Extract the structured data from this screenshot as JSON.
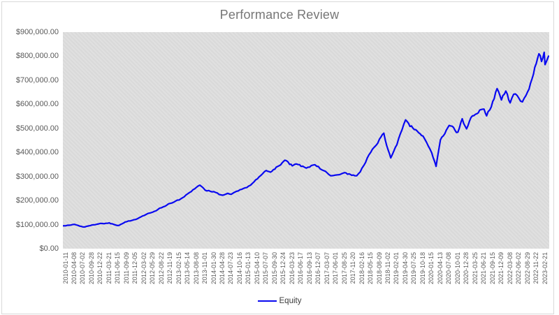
{
  "chart": {
    "title": "Performance Review",
    "legend": {
      "series_label": "Equity"
    }
  },
  "colors": {
    "line": "#0909f0",
    "title_text": "#767676",
    "axis_text": "#595959",
    "plot_background": "#dcdcdc",
    "frame_border": "#d9d9d9"
  },
  "chart_data": {
    "type": "line",
    "title": "Performance Review",
    "legend_position": "bottom",
    "grid": false,
    "ylim": [
      0,
      900000
    ],
    "y_tick_labels": [
      "$900,000.00",
      "$800,000.00",
      "$700,000.00",
      "$600,000.00",
      "$500,000.00",
      "$400,000.00",
      "$300,000.00",
      "$200,000.00",
      "$100,000.00",
      "$0.00"
    ],
    "x_tick_labels": [
      "2010-01-11",
      "2010-04-08",
      "2010-07-02",
      "2010-09-28",
      "2010-12-22",
      "2011-03-21",
      "2011-06-15",
      "2011-09-09",
      "2011-12-05",
      "2012-03-02",
      "2012-05-29",
      "2012-08-22",
      "2012-11-19",
      "2013-02-15",
      "2013-05-14",
      "2013-08-08",
      "2013-11-01",
      "2014-01-30",
      "2014-04-28",
      "2014-07-23",
      "2014-10-16",
      "2015-01-13",
      "2015-04-10",
      "2015-07-07",
      "2015-09-30",
      "2015-12-24",
      "2016-03-23",
      "2016-06-17",
      "2016-09-13",
      "2016-12-07",
      "2017-03-07",
      "2017-06-01",
      "2017-08-25",
      "2017-11-20",
      "2018-02-16",
      "2018-05-15",
      "2018-08-09",
      "2018-11-02",
      "2019-02-01",
      "2019-04-30",
      "2019-07-25",
      "2019-10-18",
      "2020-01-15",
      "2020-04-13",
      "2020-07-08",
      "2020-10-01",
      "2020-12-28",
      "2021-03-25",
      "2021-06-21",
      "2021-09-15",
      "2021-12-09",
      "2022-03-08",
      "2022-06-02",
      "2022-08-29",
      "2022-11-22",
      "2023-02-21"
    ],
    "series": [
      {
        "name": "Equity",
        "color": "#0909f0",
        "points_format": "[x_tick_index, equity_dollars]",
        "points": [
          [
            -0.3,
            95000
          ],
          [
            0,
            95000
          ],
          [
            1,
            101000
          ],
          [
            2,
            90000
          ],
          [
            3,
            98000
          ],
          [
            4,
            105000
          ],
          [
            5,
            107000
          ],
          [
            5.5,
            101000
          ],
          [
            6,
            96000
          ],
          [
            6.5,
            104000
          ],
          [
            7,
            112000
          ],
          [
            8,
            121000
          ],
          [
            9,
            138000
          ],
          [
            9.5,
            147000
          ],
          [
            10,
            152000
          ],
          [
            11,
            170000
          ],
          [
            12,
            188000
          ],
          [
            13,
            202000
          ],
          [
            14,
            228000
          ],
          [
            15,
            255000
          ],
          [
            15.4,
            264000
          ],
          [
            16,
            243000
          ],
          [
            17,
            237000
          ],
          [
            18,
            222000
          ],
          [
            18.6,
            230000
          ],
          [
            19,
            226000
          ],
          [
            20,
            245000
          ],
          [
            21,
            260000
          ],
          [
            22,
            290000
          ],
          [
            23,
            325000
          ],
          [
            23.5,
            318000
          ],
          [
            24,
            330000
          ],
          [
            24.5,
            345000
          ],
          [
            25,
            363000
          ],
          [
            25.3,
            366000
          ],
          [
            25.7,
            350000
          ],
          [
            26,
            344000
          ],
          [
            26.5,
            352000
          ],
          [
            27,
            342000
          ],
          [
            28,
            339000
          ],
          [
            28.6,
            349000
          ],
          [
            29,
            341000
          ],
          [
            30,
            315000
          ],
          [
            30.4,
            303000
          ],
          [
            31,
            306000
          ],
          [
            32,
            316000
          ],
          [
            32.5,
            311000
          ],
          [
            33,
            306000
          ],
          [
            33.4,
            303000
          ],
          [
            34,
            335000
          ],
          [
            35,
            400000
          ],
          [
            36,
            455000
          ],
          [
            36.5,
            480000
          ],
          [
            37,
            410000
          ],
          [
            37.3,
            377000
          ],
          [
            38,
            432000
          ],
          [
            39,
            535000
          ],
          [
            39.5,
            508000
          ],
          [
            40,
            495000
          ],
          [
            40.5,
            482000
          ],
          [
            41,
            468000
          ],
          [
            42,
            398000
          ],
          [
            42.5,
            342000
          ],
          [
            43,
            452000
          ],
          [
            43.5,
            478000
          ],
          [
            44,
            512000
          ],
          [
            44.5,
            504000
          ],
          [
            45,
            484000
          ],
          [
            45.5,
            540000
          ],
          [
            46,
            498000
          ],
          [
            46.5,
            545000
          ],
          [
            47,
            558000
          ],
          [
            47.5,
            576000
          ],
          [
            48,
            580000
          ],
          [
            48.3,
            552000
          ],
          [
            49,
            612000
          ],
          [
            49.5,
            665000
          ],
          [
            50,
            618000
          ],
          [
            50.5,
            655000
          ],
          [
            51,
            606000
          ],
          [
            51.4,
            642000
          ],
          [
            52,
            625000
          ],
          [
            52.4,
            610000
          ],
          [
            53,
            652000
          ],
          [
            53.5,
            705000
          ],
          [
            54,
            770000
          ],
          [
            54.3,
            810000
          ],
          [
            54.6,
            778000
          ],
          [
            54.9,
            816000
          ],
          [
            55,
            765000
          ],
          [
            55.4,
            800000
          ]
        ]
      }
    ]
  }
}
